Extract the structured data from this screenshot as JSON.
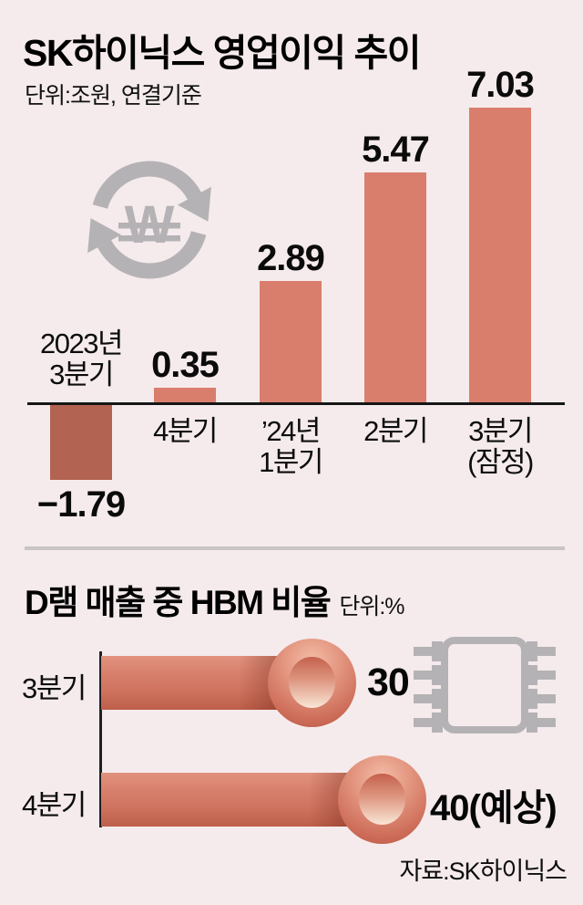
{
  "page": {
    "background_color": "#f5ebec",
    "text_color": "#0b0b0b"
  },
  "top_chart": {
    "title": "SK하이닉스 영업이익 추이",
    "unit_label": "단위:조원, 연결기준",
    "icon": "won-currency-cycle-icon",
    "bars": [
      {
        "category_lines": [
          "2023년",
          "3분기"
        ],
        "value_label": "−1.79"
      },
      {
        "category_lines": [
          "4분기"
        ],
        "value_label": "0.35"
      },
      {
        "category_lines": [
          "’24년",
          "1분기"
        ],
        "value_label": "2.89"
      },
      {
        "category_lines": [
          "2분기"
        ],
        "value_label": "5.47"
      },
      {
        "category_lines": [
          "3분기",
          "(잠정)"
        ],
        "value_label": "7.03"
      }
    ]
  },
  "bottom_chart": {
    "title": "D램 매출 중 HBM 비율",
    "unit_label": "단위:%",
    "icon": "memory-chip-icon",
    "rows": [
      {
        "label": "3분기",
        "value_label": "30"
      },
      {
        "label": "4분기",
        "value_label": "40(예상)"
      }
    ],
    "source": "자료:SK하이닉스"
  },
  "chart_data": [
    {
      "type": "bar",
      "title": "SK하이닉스 영업이익 추이",
      "unit": "조원, 연결기준",
      "categories": [
        "2023년 3분기",
        "4분기",
        "’24년 1분기",
        "2분기",
        "3분기(잠정)"
      ],
      "values": [
        -1.79,
        0.35,
        2.89,
        5.47,
        7.03
      ],
      "data_labels": [
        "−1.79",
        "0.35",
        "2.89",
        "5.47",
        "7.03"
      ],
      "baseline": 0,
      "grid": false,
      "bar_color_positive": "#d97e6c",
      "bar_color_negative": "#b26352"
    },
    {
      "type": "bar",
      "orientation": "horizontal",
      "title": "D램 매출 중 HBM 비율",
      "unit": "%",
      "categories": [
        "3분기",
        "4분기"
      ],
      "values": [
        30,
        40
      ],
      "data_labels": [
        "30",
        "40(예상)"
      ],
      "grid": false,
      "bar_color": "#d47b68"
    }
  ],
  "colors": {
    "background": "#f5ebec",
    "bar_positive": "#d97e6c",
    "bar_negative": "#b26352",
    "sphere_dark": "#b55340",
    "sphere_light": "#f9e6d6",
    "icon_gray": "#b5b2b5",
    "divider_gray": "#c9c4c6",
    "axis_black": "#161616"
  }
}
